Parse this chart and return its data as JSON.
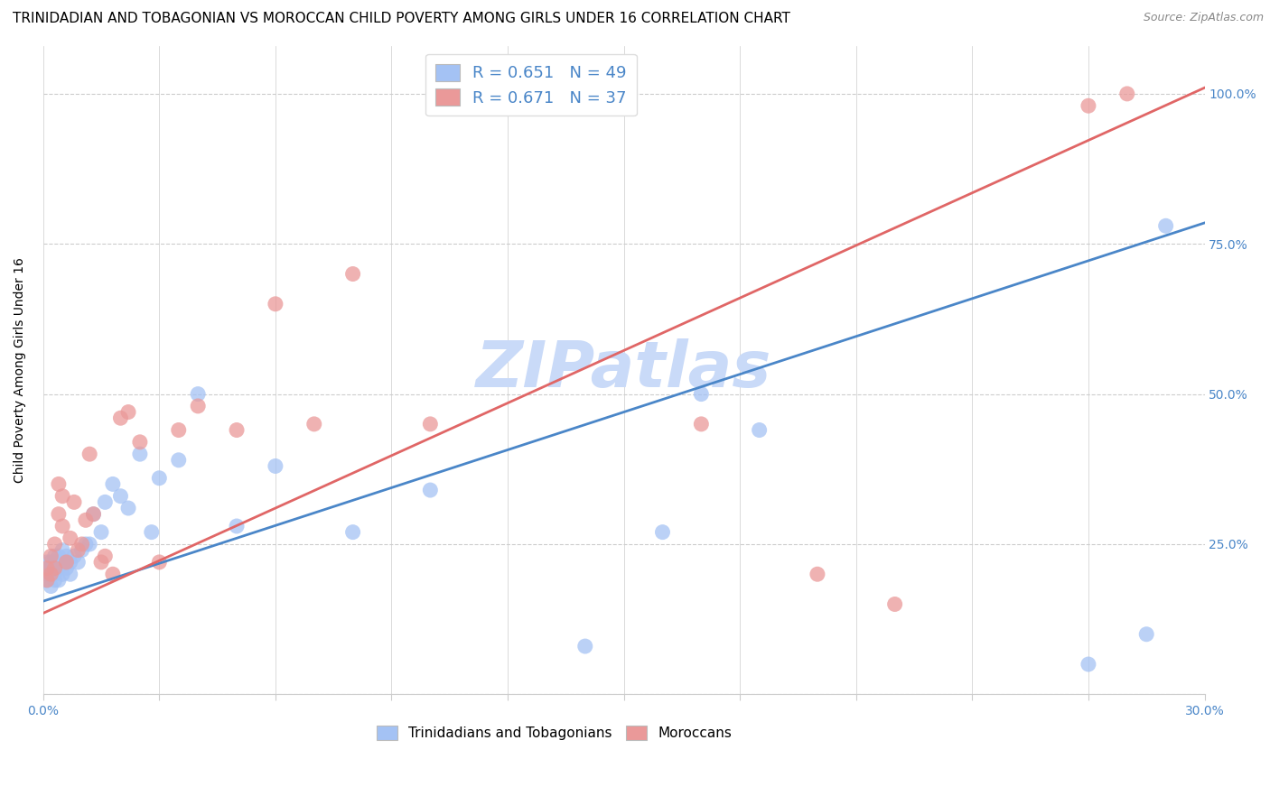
{
  "title": "TRINIDADIAN AND TOBAGONIAN VS MOROCCAN CHILD POVERTY AMONG GIRLS UNDER 16 CORRELATION CHART",
  "source": "Source: ZipAtlas.com",
  "ylabel": "Child Poverty Among Girls Under 16",
  "xlim": [
    0.0,
    0.3
  ],
  "ylim": [
    0.0,
    1.08
  ],
  "xticks": [
    0.0,
    0.03,
    0.06,
    0.09,
    0.12,
    0.15,
    0.18,
    0.21,
    0.24,
    0.27,
    0.3
  ],
  "xtick_labels": [
    "0.0%",
    "",
    "",
    "",
    "",
    "",
    "",
    "",
    "",
    "",
    "30.0%"
  ],
  "ytick_positions": [
    0.0,
    0.25,
    0.5,
    0.75,
    1.0
  ],
  "ytick_labels": [
    "",
    "25.0%",
    "50.0%",
    "75.0%",
    "100.0%"
  ],
  "blue_color": "#a4c2f4",
  "pink_color": "#ea9999",
  "blue_line_color": "#4a86c8",
  "pink_line_color": "#e06666",
  "watermark_color": "#c9daf8",
  "legend_blue_label": "R = 0.651   N = 49",
  "legend_pink_label": "R = 0.671   N = 37",
  "legend_text_color": "#4a86c8",
  "blue_line_x0": 0.0,
  "blue_line_x1": 0.3,
  "blue_line_y0": 0.155,
  "blue_line_y1": 0.785,
  "pink_line_x0": 0.0,
  "pink_line_x1": 0.3,
  "pink_line_y0": 0.135,
  "pink_line_y1": 1.01,
  "blue_scatter_x": [
    0.001,
    0.001,
    0.001,
    0.001,
    0.002,
    0.002,
    0.002,
    0.002,
    0.003,
    0.003,
    0.003,
    0.003,
    0.004,
    0.004,
    0.004,
    0.005,
    0.005,
    0.005,
    0.006,
    0.006,
    0.007,
    0.007,
    0.008,
    0.009,
    0.01,
    0.011,
    0.012,
    0.013,
    0.015,
    0.016,
    0.018,
    0.02,
    0.022,
    0.025,
    0.028,
    0.03,
    0.035,
    0.04,
    0.05,
    0.06,
    0.08,
    0.1,
    0.14,
    0.16,
    0.17,
    0.185,
    0.27,
    0.285,
    0.29
  ],
  "blue_scatter_y": [
    0.19,
    0.2,
    0.21,
    0.22,
    0.18,
    0.2,
    0.21,
    0.22,
    0.19,
    0.2,
    0.22,
    0.23,
    0.19,
    0.21,
    0.23,
    0.2,
    0.22,
    0.24,
    0.21,
    0.23,
    0.2,
    0.22,
    0.23,
    0.22,
    0.24,
    0.25,
    0.25,
    0.3,
    0.27,
    0.32,
    0.35,
    0.33,
    0.31,
    0.4,
    0.27,
    0.36,
    0.39,
    0.5,
    0.28,
    0.38,
    0.27,
    0.34,
    0.08,
    0.27,
    0.5,
    0.44,
    0.05,
    0.1,
    0.78
  ],
  "pink_scatter_x": [
    0.001,
    0.001,
    0.002,
    0.002,
    0.003,
    0.003,
    0.004,
    0.004,
    0.005,
    0.005,
    0.006,
    0.007,
    0.008,
    0.009,
    0.01,
    0.011,
    0.012,
    0.013,
    0.015,
    0.016,
    0.018,
    0.02,
    0.022,
    0.025,
    0.03,
    0.035,
    0.04,
    0.05,
    0.06,
    0.07,
    0.08,
    0.1,
    0.17,
    0.2,
    0.22,
    0.27,
    0.28
  ],
  "pink_scatter_y": [
    0.19,
    0.21,
    0.2,
    0.23,
    0.21,
    0.25,
    0.3,
    0.35,
    0.28,
    0.33,
    0.22,
    0.26,
    0.32,
    0.24,
    0.25,
    0.29,
    0.4,
    0.3,
    0.22,
    0.23,
    0.2,
    0.46,
    0.47,
    0.42,
    0.22,
    0.44,
    0.48,
    0.44,
    0.65,
    0.45,
    0.7,
    0.45,
    0.45,
    0.2,
    0.15,
    0.98,
    1.0
  ],
  "title_fontsize": 11,
  "axis_label_fontsize": 10,
  "tick_fontsize": 10,
  "watermark_text": "ZIPatlas",
  "footer_label1": "Trinidadians and Tobagonians",
  "footer_label2": "Moroccans"
}
